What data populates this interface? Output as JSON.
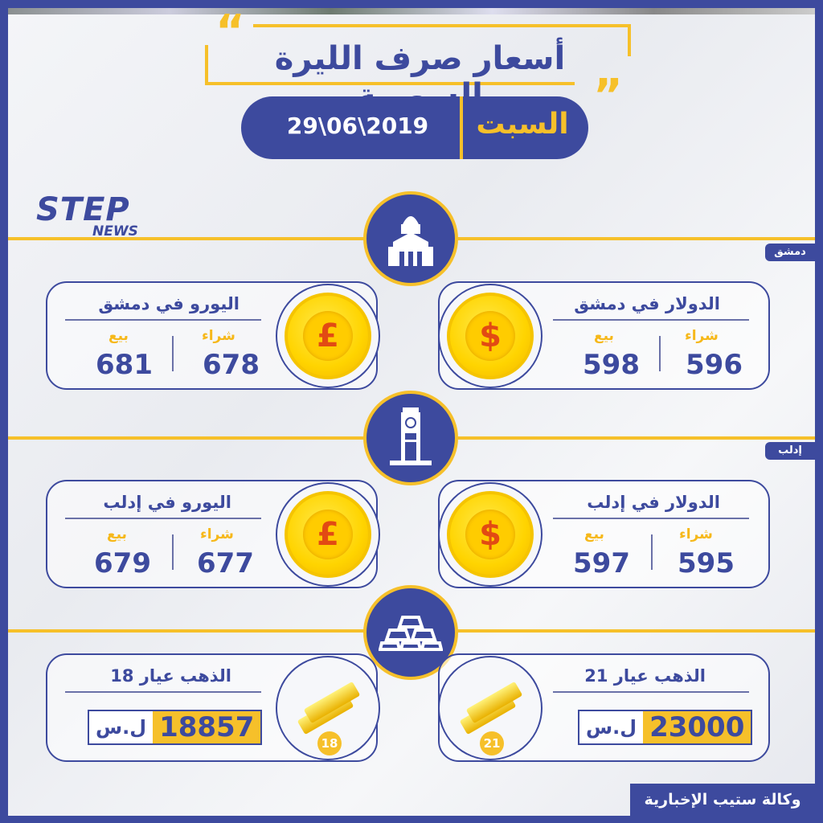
{
  "title": "أسعار صرف الليرة السورية",
  "date": {
    "day": "السبت",
    "date": "29\\06\\2019"
  },
  "logo": {
    "main": "STEP",
    "sub": "NEWS"
  },
  "colors": {
    "primary": "#3d4a9e",
    "accent": "#f6c02a"
  },
  "sections": {
    "damascus": {
      "tag": "دمشق",
      "icon": "mosque-dome-icon",
      "dollar": {
        "title": "الدولار في دمشق",
        "buy_label": "شراء",
        "buy": "596",
        "sell_label": "بيع",
        "sell": "598",
        "symbol": "$"
      },
      "euro": {
        "title": "اليورو في دمشق",
        "buy_label": "شراء",
        "buy": "678",
        "sell_label": "بيع",
        "sell": "681",
        "symbol": "£"
      }
    },
    "idlib": {
      "tag": "إدلب",
      "icon": "clock-tower-icon",
      "dollar": {
        "title": "الدولار في إدلب",
        "buy_label": "شراء",
        "buy": "595",
        "sell_label": "بيع",
        "sell": "597",
        "symbol": "$"
      },
      "euro": {
        "title": "اليورو في إدلب",
        "buy_label": "شراء",
        "buy": "677",
        "sell_label": "بيع",
        "sell": "679",
        "symbol": "£"
      }
    },
    "gold": {
      "icon": "gold-bars-icon",
      "k21": {
        "title": "الذهب عيار 21",
        "value": "23000",
        "currency": "ل.س",
        "karat": "21"
      },
      "k18": {
        "title": "الذهب عيار 18",
        "value": "18857",
        "currency": "ل.س",
        "karat": "18"
      }
    }
  },
  "footer": "وكالة ستيب الإخبارية"
}
